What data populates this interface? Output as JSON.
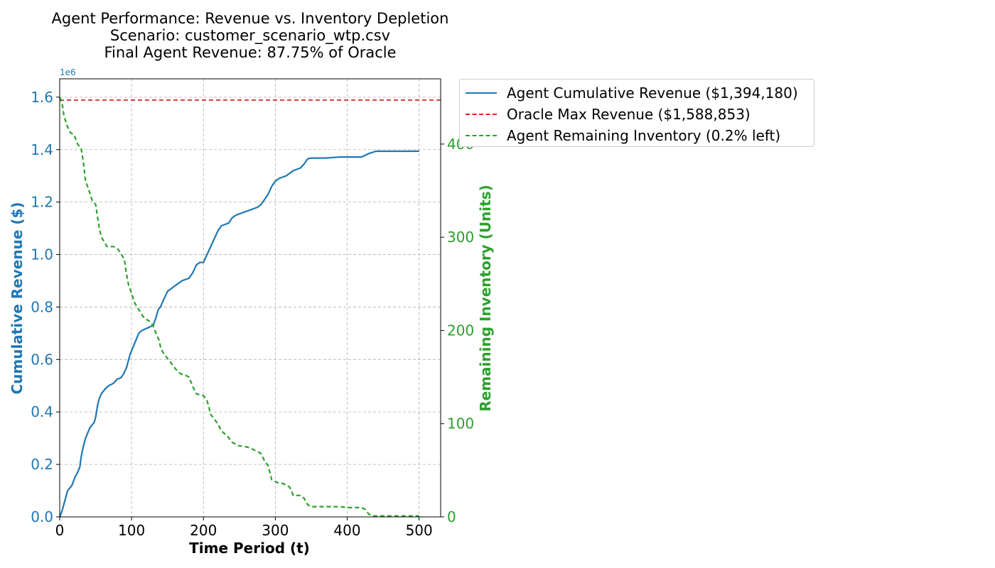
{
  "chart_data": {
    "type": "line",
    "title_lines": [
      "Agent Performance: Revenue vs. Inventory Depletion",
      "Scenario: customer_scenario_wtp.csv",
      "Final Agent Revenue: 87.75% of Oracle"
    ],
    "xlabel": "Time Period (t)",
    "ylabel_left": "Cumulative Revenue ($)",
    "ylabel_right": "Remaining Inventory (Units)",
    "y_left_offset_label": "1e6",
    "xlim": [
      0,
      530
    ],
    "ylim_left": [
      0,
      1670000
    ],
    "ylim_right": [
      0,
      470
    ],
    "x_ticks": [
      0,
      100,
      200,
      300,
      400,
      500
    ],
    "x_tick_labels": [
      "0",
      "100",
      "200",
      "300",
      "400",
      "500"
    ],
    "y_left_ticks": [
      0,
      200000,
      400000,
      600000,
      800000,
      1000000,
      1200000,
      1400000,
      1600000
    ],
    "y_left_tick_labels": [
      "0.0",
      "0.2",
      "0.4",
      "0.6",
      "0.8",
      "1.0",
      "1.2",
      "1.4",
      "1.6"
    ],
    "y_right_ticks": [
      0,
      100,
      200,
      300,
      400
    ],
    "y_right_tick_labels": [
      "0",
      "100",
      "200",
      "300",
      "400"
    ],
    "grid": true,
    "legend_position": "outside upper-right",
    "colors": {
      "revenue": "#1f77b4",
      "oracle": "#d62728",
      "inventory": "#2ca02c"
    },
    "series": [
      {
        "name": "Agent Cumulative Revenue ($1,394,180)",
        "axis": "left",
        "style": "solid",
        "x": [
          0,
          3,
          5,
          8,
          11,
          14,
          17,
          21,
          25,
          28,
          30,
          33,
          36,
          39,
          42,
          45,
          48,
          50,
          53,
          55,
          58,
          61,
          64,
          68,
          72,
          75,
          80,
          85,
          89,
          93,
          96,
          98,
          101,
          104,
          107,
          110,
          114,
          118,
          122,
          126,
          130,
          134,
          137,
          140,
          145,
          150,
          155,
          160,
          165,
          170,
          175,
          180,
          185,
          190,
          195,
          200,
          205,
          210,
          215,
          220,
          225,
          230,
          235,
          240,
          245,
          250,
          255,
          260,
          265,
          270,
          275,
          280,
          285,
          290,
          295,
          300,
          305,
          310,
          315,
          320,
          325,
          330,
          335,
          340,
          345,
          350,
          360,
          370,
          380,
          390,
          400,
          410,
          420,
          430,
          440,
          450,
          460,
          470,
          480,
          490,
          500
        ],
        "y": [
          0,
          20000,
          40000,
          70000,
          100000,
          110000,
          120000,
          150000,
          170000,
          190000,
          230000,
          270000,
          300000,
          320000,
          340000,
          350000,
          360000,
          380000,
          430000,
          450000,
          470000,
          480000,
          490000,
          500000,
          505000,
          510000,
          525000,
          530000,
          545000,
          570000,
          600000,
          620000,
          640000,
          660000,
          680000,
          700000,
          710000,
          715000,
          720000,
          725000,
          730000,
          760000,
          790000,
          800000,
          830000,
          860000,
          870000,
          880000,
          890000,
          900000,
          905000,
          910000,
          930000,
          960000,
          970000,
          970000,
          1000000,
          1030000,
          1060000,
          1090000,
          1110000,
          1115000,
          1120000,
          1140000,
          1150000,
          1155000,
          1160000,
          1165000,
          1170000,
          1175000,
          1180000,
          1190000,
          1210000,
          1230000,
          1260000,
          1280000,
          1290000,
          1295000,
          1300000,
          1310000,
          1320000,
          1325000,
          1330000,
          1345000,
          1365000,
          1368000,
          1368000,
          1368000,
          1370000,
          1372000,
          1372000,
          1372000,
          1372000,
          1385000,
          1394000,
          1394000,
          1394000,
          1394000,
          1394000,
          1394000,
          1394180
        ]
      },
      {
        "name": "Oracle Max Revenue ($1,588,853)",
        "axis": "left",
        "style": "dashed",
        "x": [
          0,
          530
        ],
        "y": [
          1588853,
          1588853
        ]
      },
      {
        "name": "Agent Remaining Inventory (0.2% left)",
        "axis": "right",
        "style": "dashed",
        "x": [
          0,
          3,
          6,
          10,
          15,
          20,
          25,
          30,
          33,
          36,
          40,
          45,
          50,
          55,
          58,
          62,
          66,
          70,
          75,
          80,
          85,
          90,
          93,
          96,
          100,
          104,
          108,
          112,
          116,
          120,
          125,
          130,
          135,
          138,
          141,
          145,
          150,
          155,
          160,
          165,
          170,
          175,
          180,
          185,
          190,
          195,
          200,
          205,
          210,
          215,
          220,
          225,
          230,
          235,
          240,
          245,
          250,
          255,
          260,
          265,
          270,
          275,
          280,
          285,
          290,
          295,
          300,
          305,
          310,
          315,
          320,
          325,
          330,
          335,
          340,
          345,
          350,
          360,
          370,
          380,
          390,
          400,
          410,
          420,
          425,
          430,
          435,
          440,
          450,
          460,
          470,
          480,
          490,
          500
        ],
        "y": [
          450,
          445,
          430,
          420,
          412,
          410,
          400,
          395,
          380,
          360,
          352,
          340,
          335,
          310,
          300,
          295,
          290,
          290,
          290,
          288,
          283,
          276,
          260,
          248,
          240,
          230,
          225,
          220,
          215,
          212,
          210,
          205,
          195,
          190,
          180,
          175,
          170,
          165,
          160,
          155,
          153,
          152,
          150,
          140,
          132,
          131,
          130,
          125,
          110,
          105,
          100,
          92,
          89,
          85,
          80,
          78,
          76,
          76,
          75,
          74,
          72,
          70,
          68,
          60,
          55,
          40,
          38,
          36,
          36,
          34,
          32,
          23,
          23,
          23,
          20,
          13,
          11,
          11,
          11,
          11,
          11,
          10,
          10,
          10,
          8,
          3,
          1,
          1,
          1,
          1,
          1,
          1,
          1,
          1
        ]
      }
    ]
  }
}
